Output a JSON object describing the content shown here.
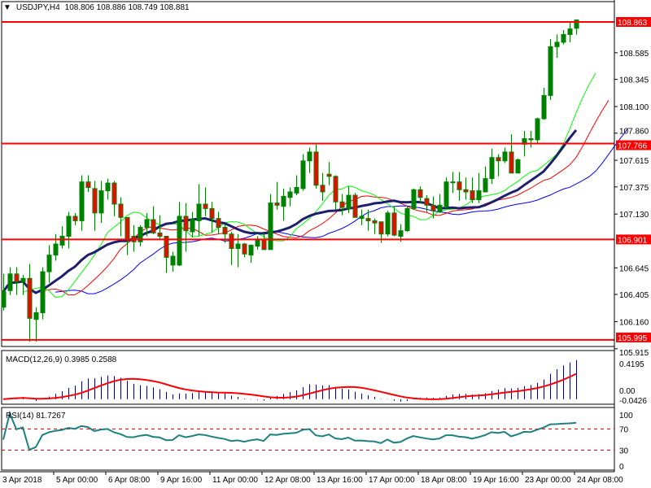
{
  "header": {
    "menu_icon": "triangle-down-icon",
    "symbol_timeframe": "USDJPY,H4",
    "ohlc": "108.806 108.886 108.749 108.881"
  },
  "chart_data": {
    "type": "candlestick",
    "symbol": "USDJPY",
    "timeframe": "H4",
    "ohlc_order": [
      "open",
      "high",
      "low",
      "close"
    ],
    "ohlc": [
      [
        106.29,
        106.59,
        106.26,
        106.43
      ],
      [
        106.44,
        106.65,
        106.4,
        106.59
      ],
      [
        106.59,
        106.65,
        106.4,
        106.52
      ],
      [
        106.52,
        106.58,
        106.4,
        106.55
      ],
      [
        106.55,
        106.68,
        105.98,
        106.19
      ],
      [
        106.18,
        106.29,
        105.98,
        106.24
      ],
      [
        106.24,
        106.65,
        106.18,
        106.61
      ],
      [
        106.61,
        106.85,
        106.51,
        106.76
      ],
      [
        106.76,
        106.95,
        106.71,
        106.86
      ],
      [
        106.85,
        107.02,
        106.82,
        106.93
      ],
      [
        106.93,
        107.15,
        106.82,
        107.11
      ],
      [
        107.11,
        107.14,
        107.03,
        107.07
      ],
      [
        107.07,
        107.48,
        106.98,
        107.42
      ],
      [
        107.42,
        107.48,
        107.33,
        107.37
      ],
      [
        107.36,
        107.43,
        106.98,
        107.14
      ],
      [
        107.14,
        107.43,
        107.05,
        107.34
      ],
      [
        107.34,
        107.45,
        107.26,
        107.41
      ],
      [
        107.41,
        107.43,
        107.11,
        107.22
      ],
      [
        107.22,
        107.28,
        106.93,
        107.1
      ],
      [
        107.1,
        107.1,
        106.76,
        106.9
      ],
      [
        106.93,
        107.03,
        106.79,
        106.88
      ],
      [
        106.88,
        107.03,
        106.84,
        107.01
      ],
      [
        107.01,
        107.14,
        106.93,
        107.08
      ],
      [
        107.08,
        107.2,
        106.95,
        106.96
      ],
      [
        106.96,
        107.12,
        106.9,
        106.93
      ],
      [
        106.93,
        106.93,
        106.6,
        106.74
      ],
      [
        106.67,
        106.79,
        106.61,
        106.75
      ],
      [
        106.67,
        107.24,
        106.66,
        107.11
      ],
      [
        107.11,
        107.23,
        106.79,
        106.98
      ],
      [
        106.97,
        107.15,
        106.92,
        107.08
      ],
      [
        107.07,
        107.4,
        106.93,
        107.22
      ],
      [
        107.22,
        107.37,
        107.11,
        107.18
      ],
      [
        107.18,
        107.24,
        106.96,
        107.09
      ],
      [
        107.09,
        107.15,
        106.95,
        107.01
      ],
      [
        107.01,
        107.04,
        106.87,
        106.95
      ],
      [
        106.95,
        106.97,
        106.67,
        106.82
      ],
      [
        106.82,
        106.95,
        106.65,
        106.86
      ],
      [
        106.86,
        106.87,
        106.74,
        106.77
      ],
      [
        106.76,
        106.85,
        106.69,
        106.85
      ],
      [
        106.84,
        106.93,
        106.81,
        106.9
      ],
      [
        106.9,
        106.96,
        106.81,
        106.81
      ],
      [
        106.81,
        107.31,
        106.81,
        107.23
      ],
      [
        107.23,
        107.42,
        107.17,
        107.21
      ],
      [
        107.2,
        107.36,
        107.07,
        107.29
      ],
      [
        107.28,
        107.37,
        107.2,
        107.33
      ],
      [
        107.32,
        107.48,
        107.3,
        107.37
      ],
      [
        107.36,
        107.67,
        107.34,
        107.61
      ],
      [
        107.61,
        107.73,
        107.5,
        107.69
      ],
      [
        107.69,
        107.76,
        107.36,
        107.39
      ],
      [
        107.39,
        107.5,
        107.25,
        107.33
      ],
      [
        107.49,
        107.6,
        107.39,
        107.47
      ],
      [
        107.47,
        107.48,
        107.17,
        107.24
      ],
      [
        107.24,
        107.31,
        107.12,
        107.19
      ],
      [
        107.18,
        107.38,
        107.14,
        107.3
      ],
      [
        107.3,
        107.32,
        107.1,
        107.1
      ],
      [
        107.09,
        107.17,
        107.03,
        107.11
      ],
      [
        107.09,
        107.17,
        106.98,
        107.07
      ],
      [
        107.07,
        107.09,
        106.95,
        107.05
      ],
      [
        107.06,
        107.06,
        106.87,
        106.95
      ],
      [
        106.95,
        107.16,
        106.93,
        107.14
      ],
      [
        107.14,
        107.2,
        106.93,
        106.94
      ],
      [
        106.93,
        107.04,
        106.88,
        106.98
      ],
      [
        106.98,
        107.2,
        106.97,
        107.18
      ],
      [
        107.18,
        107.36,
        107.17,
        107.35
      ],
      [
        107.35,
        107.38,
        107.23,
        107.28
      ],
      [
        107.27,
        107.3,
        107.15,
        107.21
      ],
      [
        107.21,
        107.29,
        107.09,
        107.16
      ],
      [
        107.15,
        107.31,
        107.14,
        107.21
      ],
      [
        107.2,
        107.46,
        107.18,
        107.42
      ],
      [
        107.42,
        107.51,
        107.32,
        107.42
      ],
      [
        107.42,
        107.51,
        107.25,
        107.35
      ],
      [
        107.35,
        107.46,
        107.26,
        107.33
      ],
      [
        107.34,
        107.46,
        107.23,
        107.26
      ],
      [
        107.26,
        107.5,
        107.23,
        107.34
      ],
      [
        107.33,
        107.56,
        107.33,
        107.45
      ],
      [
        107.45,
        107.72,
        107.4,
        107.64
      ],
      [
        107.64,
        107.67,
        107.47,
        107.61
      ],
      [
        107.61,
        107.73,
        107.59,
        107.69
      ],
      [
        107.69,
        107.85,
        107.5,
        107.5
      ],
      [
        107.5,
        107.63,
        107.5,
        107.62
      ],
      [
        107.76,
        107.88,
        107.65,
        107.81
      ],
      [
        107.81,
        107.88,
        107.73,
        107.8
      ],
      [
        107.8,
        108.0,
        107.76,
        107.99
      ],
      [
        107.99,
        108.27,
        107.98,
        108.2
      ],
      [
        108.2,
        108.71,
        108.16,
        108.64
      ],
      [
        108.64,
        108.75,
        108.54,
        108.68
      ],
      [
        108.68,
        108.79,
        108.66,
        108.75
      ],
      [
        108.75,
        108.86,
        108.68,
        108.8
      ],
      [
        108.806,
        108.886,
        108.749,
        108.881
      ]
    ],
    "price_axis": {
      "range": [
        105.9,
        108.9
      ],
      "ticks": [
        "108.585",
        "108.345",
        "108.100",
        "107.860",
        "107.615",
        "107.375",
        "107.130",
        "106.645",
        "106.405",
        "106.160",
        "105.915"
      ]
    },
    "levels": [
      {
        "value": 108.863,
        "label": "108.863"
      },
      {
        "value": 107.766,
        "label": "107.766"
      },
      {
        "value": 106.901,
        "label": "106.901"
      },
      {
        "value": 105.995,
        "label": "105.995"
      }
    ],
    "time_labels": [
      "3 Apr 2018",
      "5 Apr 00:00",
      "6 Apr 08:00",
      "9 Apr 16:00",
      "11 Apr 00:00",
      "12 Apr 08:00",
      "13 Apr 16:00",
      "17 Apr 00:00",
      "18 Apr 08:00",
      "19 Apr 16:00",
      "23 Apr 00:00",
      "24 Apr 08:00"
    ],
    "colors": {
      "bull": "#008000",
      "bear": "#ff0000",
      "wick": "#008000",
      "level_line": "#ff0000",
      "ma_green": "#00ff00",
      "ma_red": "#ff0000",
      "ma_blue": "#0000ff",
      "ma_navy": "#1e1e6e",
      "macd_hist": "#000080",
      "macd_signal": "#ff0000",
      "rsi": "#1e8080"
    },
    "macd": {
      "label": "MACD(12,26,9) 0.3985 0.2588",
      "axis_max": "0.4195",
      "axis_zero": "0.00",
      "axis_min": "-0.0426",
      "range": [
        -0.0426,
        0.4195
      ]
    },
    "rsi": {
      "label": "RSI(14) 81.7267",
      "axis": [
        "100",
        "70",
        "30",
        "0"
      ],
      "levels": [
        70,
        30
      ]
    }
  }
}
